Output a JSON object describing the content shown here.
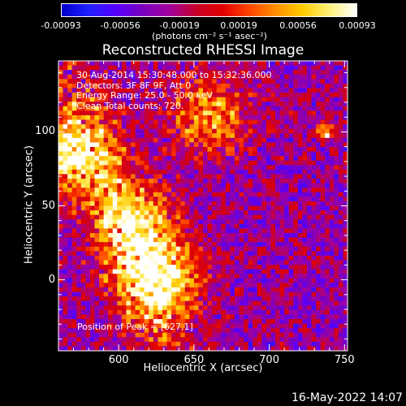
{
  "colorbar": {
    "tick_labels": [
      "-0.00093",
      "-0.00056",
      "-0.00019",
      "0.00019",
      "0.00056",
      "0.00093"
    ],
    "unit_label": "(photons cm⁻² s⁻¹ asec⁻²)",
    "colors": [
      "#0000cc",
      "#2020ff",
      "#5500ff",
      "#7a00c0",
      "#a000a0",
      "#c8002a",
      "#e00000",
      "#ff4500",
      "#ff9000",
      "#ffcc00",
      "#fff27a",
      "#ffffff"
    ]
  },
  "chart_data": {
    "type": "heatmap",
    "title": "Reconstructed RHESSI Image",
    "xlabel": "Heliocentric X (arcsec)",
    "ylabel": "Heliocentric Y (arcsec)",
    "xlim": [
      560,
      752
    ],
    "ylim": [
      -48,
      148
    ],
    "xticks": [
      600,
      650,
      700,
      750
    ],
    "yticks": [
      0,
      50,
      100
    ],
    "value_range": [
      -0.00093,
      0.00093
    ],
    "bright_regions": [
      {
        "name": "lower center",
        "x": 627,
        "y": 1,
        "level": 1.0
      },
      {
        "name": "upper left",
        "x": 570,
        "y": 85,
        "level": 0.85
      },
      {
        "name": "left center",
        "x": 610,
        "y": 40,
        "level": 0.7
      },
      {
        "name": "top center",
        "x": 660,
        "y": 110,
        "level": 0.6
      },
      {
        "name": "upper right spot",
        "x": 738,
        "y": 100,
        "level": 0.7
      }
    ],
    "annotations": [
      "30-Aug-2014 15:30:48.000 to 15:32:36.000",
      "Detectors: 3F 8F 9F, Att 0",
      "Energy Range: 25.0 - 50.0 keV",
      "Clean     Total counts: 720."
    ],
    "peak_label": "Position of Peak = [627,1]"
  },
  "footer": {
    "timestamp": "16-May-2022 14:07"
  }
}
